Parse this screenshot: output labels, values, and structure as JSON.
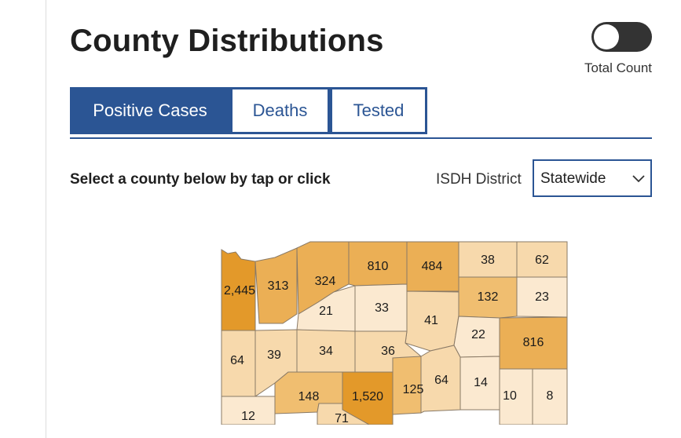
{
  "header": {
    "title": "County Distributions",
    "toggle_label": "Total Count"
  },
  "tabs": [
    {
      "label": "Positive Cases",
      "active": true
    },
    {
      "label": "Deaths",
      "active": false
    },
    {
      "label": "Tested",
      "active": false
    }
  ],
  "instruction": "Select a county below by tap or click",
  "district": {
    "label": "ISDH District",
    "selected": "Statewide"
  },
  "map": {
    "colors": {
      "light": "#fbe9d0",
      "pale": "#f7d9ac",
      "medium": "#f0be70",
      "strong": "#ebaf55",
      "dark": "#e3992a",
      "border": "#8a7a66"
    },
    "counties": [
      {
        "label": "2,445",
        "shade": "dark"
      },
      {
        "label": "313",
        "shade": "strong"
      },
      {
        "label": "324",
        "shade": "strong"
      },
      {
        "label": "810",
        "shade": "strong"
      },
      {
        "label": "484",
        "shade": "strong"
      },
      {
        "label": "38",
        "shade": "pale"
      },
      {
        "label": "62",
        "shade": "pale"
      },
      {
        "label": "21",
        "shade": "light"
      },
      {
        "label": "33",
        "shade": "light"
      },
      {
        "label": "41",
        "shade": "pale"
      },
      {
        "label": "132",
        "shade": "medium"
      },
      {
        "label": "23",
        "shade": "light"
      },
      {
        "label": "22",
        "shade": "light"
      },
      {
        "label": "816",
        "shade": "strong"
      },
      {
        "label": "64",
        "shade": "pale"
      },
      {
        "label": "39",
        "shade": "pale"
      },
      {
        "label": "34",
        "shade": "pale"
      },
      {
        "label": "36",
        "shade": "pale"
      },
      {
        "label": "148",
        "shade": "medium"
      },
      {
        "label": "1,520",
        "shade": "dark"
      },
      {
        "label": "125",
        "shade": "medium"
      },
      {
        "label": "64",
        "shade": "pale"
      },
      {
        "label": "14",
        "shade": "light"
      },
      {
        "label": "10",
        "shade": "light"
      },
      {
        "label": "8",
        "shade": "light"
      },
      {
        "label": "12",
        "shade": "light"
      },
      {
        "label": "71",
        "shade": "pale"
      }
    ]
  }
}
